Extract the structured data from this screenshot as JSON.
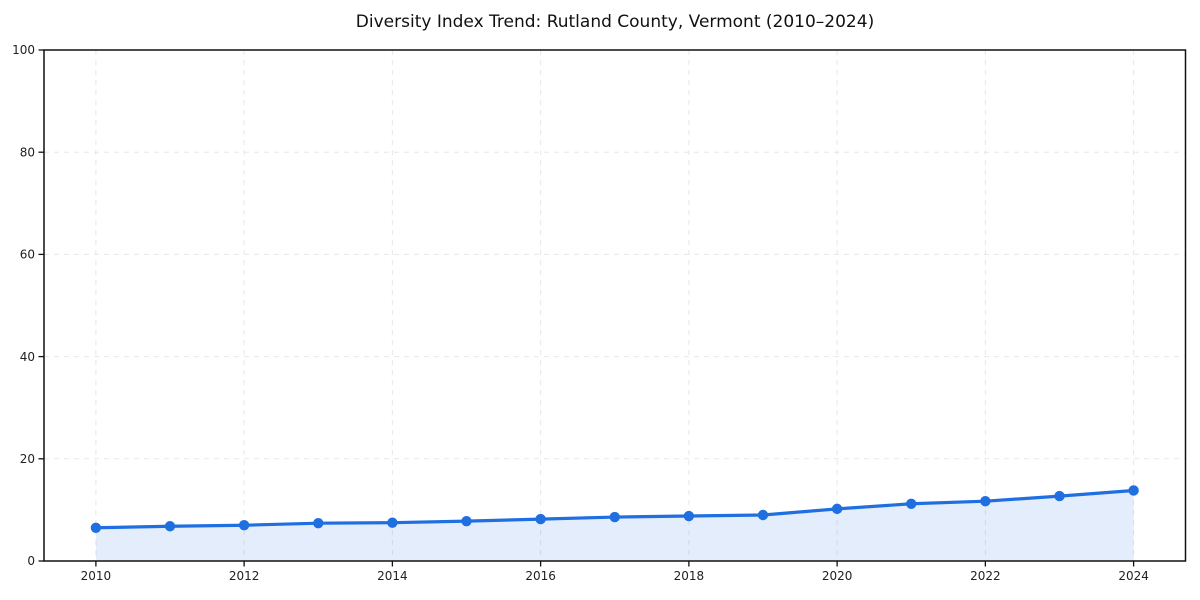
{
  "chart_data": {
    "type": "line",
    "title": "Diversity Index Trend: Rutland County, Vermont (2010–2024)",
    "x": [
      2010,
      2011,
      2012,
      2013,
      2014,
      2015,
      2016,
      2017,
      2018,
      2019,
      2020,
      2021,
      2022,
      2023,
      2024
    ],
    "series": [
      {
        "name": "Diversity Index",
        "values": [
          6.5,
          6.8,
          7.0,
          7.4,
          7.5,
          7.8,
          8.2,
          8.6,
          8.8,
          9.0,
          10.2,
          11.2,
          11.7,
          12.7,
          13.8
        ]
      }
    ],
    "xlabel": "",
    "ylabel": "",
    "xlim": [
      2009.3,
      2024.7
    ],
    "ylim": [
      0,
      100
    ],
    "xticks": [
      2010,
      2012,
      2014,
      2016,
      2018,
      2020,
      2022,
      2024
    ],
    "yticks": [
      0,
      20,
      40,
      60,
      80,
      100
    ],
    "grid": true,
    "grid_style": "dashed",
    "area_fill": true,
    "markers": true,
    "legend_position": "none",
    "colors": {
      "line": "#1f6fe0",
      "fill": "rgba(31, 111, 224, 0.12)",
      "grid": "#e7e7e7",
      "spine": "#111111",
      "tick_label": "#222222",
      "title": "#111111",
      "background": "#ffffff"
    }
  }
}
